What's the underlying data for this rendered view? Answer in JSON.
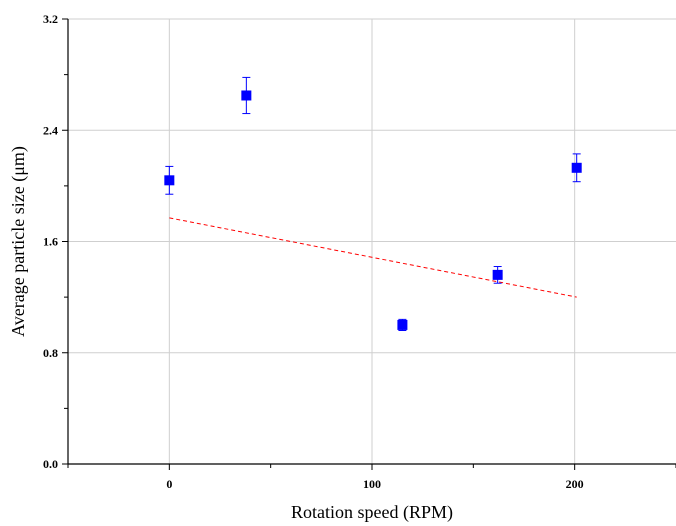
{
  "chart_data": {
    "type": "scatter",
    "title": "",
    "xlabel": "Rotation speed (RPM)",
    "ylabel": "Average particle size (μm)",
    "xlim": [
      -50,
      250
    ],
    "ylim": [
      0.0,
      3.2
    ],
    "x_ticks": [
      0,
      100,
      200
    ],
    "x_tick_labels": [
      "0",
      "100",
      "200"
    ],
    "y_ticks": [
      0.0,
      0.8,
      1.6,
      2.4,
      3.2
    ],
    "y_tick_labels": [
      "0.0",
      "0.8",
      "1.6",
      "2.4",
      "3.2"
    ],
    "grid": true,
    "series": [
      {
        "marker": "square",
        "color": "#0000ff",
        "points": [
          {
            "x": 0,
            "y": 2.04,
            "err": 0.1
          },
          {
            "x": 38,
            "y": 2.65,
            "err": 0.13
          },
          {
            "x": 115,
            "y": 1.0,
            "err": 0.04
          },
          {
            "x": 162,
            "y": 1.36,
            "err": 0.06
          },
          {
            "x": 201,
            "y": 2.13,
            "err": 0.1
          }
        ]
      }
    ],
    "trendline": {
      "style": "dashed",
      "color": "#ff0000",
      "x": [
        0,
        201
      ],
      "y": [
        1.77,
        1.2
      ]
    }
  }
}
